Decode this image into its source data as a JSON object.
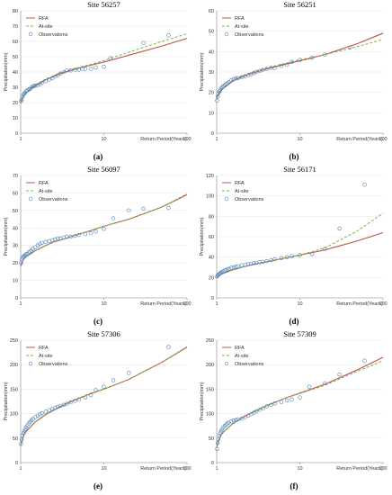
{
  "colors": {
    "rfa": "#c0504d",
    "atsite": "#7ab648",
    "obs": "#4f81bd",
    "axis": "#808080"
  },
  "chart_data": [
    {
      "type": "line",
      "title": "Site 56257",
      "panel_label": "(a)",
      "xlabel": "Return Period(Years)",
      "ylabel": "Precipitation(mm)",
      "xscale": "log",
      "xlim": [
        1,
        100
      ],
      "ylim": [
        0,
        80
      ],
      "xticks": [
        1,
        10,
        100
      ],
      "yticks": [
        0,
        10,
        20,
        30,
        40,
        50,
        60,
        70,
        80
      ],
      "legend": [
        "RFA",
        "At-site",
        "Observations"
      ],
      "legend_position": "top-left",
      "series": [
        {
          "name": "RFA",
          "kind": "line",
          "x": [
            1,
            1.05,
            1.1,
            1.2,
            1.35,
            1.5,
            1.75,
            2,
            2.5,
            3,
            4,
            5,
            7,
            10,
            20,
            50,
            100
          ],
          "y": [
            20,
            23,
            25,
            27,
            29.5,
            31,
            33,
            35,
            37,
            39,
            41,
            42.5,
            44.5,
            46.5,
            51,
            57,
            62
          ]
        },
        {
          "name": "At-site",
          "kind": "line",
          "x": [
            1,
            1.05,
            1.1,
            1.2,
            1.35,
            1.5,
            1.75,
            2,
            2.5,
            3,
            4,
            5,
            7,
            10,
            20,
            50,
            100
          ],
          "y": [
            20.5,
            23.5,
            25.5,
            27.5,
            30,
            31.5,
            33.5,
            35.5,
            37.5,
            39.5,
            41.5,
            43,
            45,
            47.5,
            53,
            60,
            65
          ]
        },
        {
          "name": "Observations",
          "kind": "points",
          "x": [
            1.01,
            1.03,
            1.05,
            1.08,
            1.1,
            1.13,
            1.16,
            1.2,
            1.25,
            1.3,
            1.35,
            1.4,
            1.45,
            1.5,
            1.6,
            1.7,
            1.8,
            2,
            2.2,
            2.4,
            2.6,
            2.8,
            3,
            3.3,
            3.6,
            4,
            4.5,
            5,
            5.5,
            6,
            7,
            8,
            10,
            12,
            30,
            60
          ],
          "y": [
            21,
            22,
            24,
            25,
            26,
            26.5,
            27.5,
            28,
            28.5,
            29,
            30,
            30.5,
            31,
            31,
            31.5,
            32,
            33,
            34,
            35,
            36,
            37,
            38,
            39,
            40,
            41,
            41,
            41.5,
            41.5,
            42,
            42,
            42,
            43,
            43.5,
            49,
            59,
            64
          ]
        }
      ]
    },
    {
      "type": "line",
      "title": "Site 56251",
      "panel_label": "(b)",
      "xlabel": "Return Period(Years)",
      "ylabel": "Precipitation(mm)",
      "xscale": "log",
      "xlim": [
        1,
        100
      ],
      "ylim": [
        0,
        60
      ],
      "xticks": [
        1,
        10,
        100
      ],
      "yticks": [
        0,
        10,
        20,
        30,
        40,
        50,
        60
      ],
      "legend": [
        "RFA",
        "At-site",
        "Observations"
      ],
      "legend_position": "top-left",
      "series": [
        {
          "name": "RFA",
          "kind": "line",
          "x": [
            1,
            1.05,
            1.1,
            1.2,
            1.35,
            1.5,
            1.75,
            2,
            2.5,
            3,
            4,
            5,
            7,
            10,
            20,
            50,
            100
          ],
          "y": [
            17,
            19,
            20.5,
            22,
            23.5,
            25,
            26.5,
            27.5,
            29,
            30,
            31.5,
            32.5,
            34,
            35.5,
            38.5,
            44,
            49
          ]
        },
        {
          "name": "At-site",
          "kind": "line",
          "x": [
            1,
            1.05,
            1.1,
            1.2,
            1.35,
            1.5,
            1.75,
            2,
            2.5,
            3,
            4,
            5,
            7,
            10,
            20,
            50,
            100
          ],
          "y": [
            17.5,
            19.5,
            21,
            22.5,
            24,
            25.5,
            27,
            28,
            29.5,
            30.5,
            32,
            33,
            34.5,
            36,
            38.5,
            42.5,
            46
          ]
        },
        {
          "name": "Observations",
          "kind": "points",
          "x": [
            1.01,
            1.03,
            1.05,
            1.08,
            1.1,
            1.13,
            1.16,
            1.2,
            1.25,
            1.3,
            1.35,
            1.4,
            1.5,
            1.6,
            1.7,
            1.8,
            2,
            2.2,
            2.4,
            2.6,
            2.8,
            3,
            3.3,
            3.6,
            4,
            4.5,
            5,
            6,
            7,
            8,
            10,
            14,
            20,
            40
          ],
          "y": [
            16,
            18,
            19.5,
            20.5,
            21,
            22,
            22.5,
            23,
            23.5,
            24,
            24.5,
            25,
            26,
            26.5,
            27,
            27,
            27.5,
            28,
            28.5,
            29,
            29.5,
            30,
            30.5,
            31,
            31.5,
            32,
            32,
            33,
            33.5,
            35,
            36,
            37,
            38.5,
            42
          ]
        }
      ]
    },
    {
      "type": "line",
      "title": "Site 56097",
      "panel_label": "(c)",
      "xlabel": "Return Period(Years)",
      "ylabel": "Precipitation(mm)",
      "xscale": "log",
      "xlim": [
        1,
        100
      ],
      "ylim": [
        0,
        70
      ],
      "xticks": [
        1,
        10,
        100
      ],
      "yticks": [
        0,
        10,
        20,
        30,
        40,
        50,
        60,
        70
      ],
      "legend": [
        "RFA",
        "At-site",
        "Observations"
      ],
      "legend_position": "top-left",
      "series": [
        {
          "name": "RFA",
          "kind": "line",
          "x": [
            1,
            1.05,
            1.1,
            1.2,
            1.35,
            1.5,
            1.75,
            2,
            2.5,
            3,
            4,
            5,
            7,
            10,
            20,
            50,
            100
          ],
          "y": [
            18,
            21,
            22.5,
            24,
            25.5,
            27,
            28.5,
            30,
            32,
            33,
            35,
            36.5,
            38.5,
            41,
            45,
            52,
            59
          ]
        },
        {
          "name": "At-site",
          "kind": "line",
          "x": [
            1,
            1.05,
            1.1,
            1.2,
            1.35,
            1.5,
            1.75,
            2,
            2.5,
            3,
            4,
            5,
            7,
            10,
            20,
            50,
            100
          ],
          "y": [
            18,
            21,
            22.5,
            24,
            25.5,
            27,
            28.5,
            30,
            32,
            33,
            35,
            36.5,
            38.5,
            41,
            45,
            52,
            59.5
          ]
        },
        {
          "name": "Observations",
          "kind": "points",
          "x": [
            1.01,
            1.03,
            1.05,
            1.08,
            1.1,
            1.13,
            1.16,
            1.2,
            1.25,
            1.3,
            1.35,
            1.4,
            1.5,
            1.6,
            1.7,
            1.8,
            2,
            2.2,
            2.4,
            2.6,
            2.8,
            3,
            3.3,
            3.6,
            4,
            4.5,
            5,
            6,
            7,
            8,
            10,
            13,
            20,
            30,
            60
          ],
          "y": [
            20,
            22,
            23,
            23.5,
            24,
            24.5,
            25,
            25,
            26,
            26.5,
            27,
            28,
            29,
            30,
            31,
            31.5,
            32,
            32.5,
            33,
            33.5,
            34,
            34,
            34.5,
            35,
            35,
            35.5,
            36,
            36.5,
            37,
            38,
            39.5,
            45.5,
            50,
            51,
            51.5
          ]
        }
      ]
    },
    {
      "type": "line",
      "title": "Site 56171",
      "panel_label": "(d)",
      "xlabel": "Return Period(Years)",
      "ylabel": "Precipitation(mm)",
      "xscale": "log",
      "xlim": [
        1,
        100
      ],
      "ylim": [
        0,
        120
      ],
      "xticks": [
        1,
        10,
        100
      ],
      "yticks": [
        0,
        20,
        40,
        60,
        80,
        100,
        120
      ],
      "legend": [
        "RFA",
        "At-site",
        "Observations"
      ],
      "legend_position": "top-left",
      "series": [
        {
          "name": "RFA",
          "kind": "line",
          "x": [
            1,
            1.05,
            1.1,
            1.2,
            1.35,
            1.5,
            1.75,
            2,
            2.5,
            3,
            4,
            5,
            7,
            10,
            20,
            50,
            100
          ],
          "y": [
            20,
            21.5,
            22.5,
            24,
            25.5,
            27,
            28.5,
            30,
            32,
            33.5,
            35.5,
            37,
            39.5,
            42,
            47,
            56,
            64
          ]
        },
        {
          "name": "At-site",
          "kind": "line",
          "x": [
            1,
            1.05,
            1.1,
            1.2,
            1.35,
            1.5,
            1.75,
            2,
            2.5,
            3,
            4,
            5,
            7,
            10,
            20,
            50,
            100
          ],
          "y": [
            20,
            21.5,
            22.5,
            24,
            25.5,
            27,
            28.5,
            30,
            32,
            33.5,
            35.5,
            37,
            39.5,
            42,
            49,
            66,
            83
          ]
        },
        {
          "name": "Observations",
          "kind": "points",
          "x": [
            1.01,
            1.03,
            1.05,
            1.08,
            1.1,
            1.13,
            1.16,
            1.2,
            1.25,
            1.3,
            1.35,
            1.4,
            1.5,
            1.6,
            1.7,
            1.8,
            2,
            2.2,
            2.4,
            2.6,
            2.8,
            3,
            3.3,
            3.6,
            4,
            4.5,
            5,
            6,
            7,
            8,
            10,
            14,
            20,
            30,
            60
          ],
          "y": [
            21,
            22,
            23,
            23.5,
            24,
            25,
            25.5,
            26,
            27,
            27.5,
            28,
            28.5,
            29.5,
            30,
            30.5,
            31,
            32,
            32.5,
            33,
            33.5,
            34,
            34.5,
            35,
            35.5,
            36,
            37,
            38,
            39,
            40,
            41,
            42,
            43,
            48,
            68,
            111
          ]
        }
      ]
    },
    {
      "type": "line",
      "title": "Site 57306",
      "panel_label": "(e)",
      "xlabel": "Return Period(Years)",
      "ylabel": "Precipitation(mm)",
      "xscale": "log",
      "xlim": [
        1,
        100
      ],
      "ylim": [
        0,
        250
      ],
      "xticks": [
        1,
        10,
        100
      ],
      "yticks": [
        0,
        50,
        100,
        150,
        200,
        250
      ],
      "legend": [
        "RFA",
        "At-site",
        "Observations"
      ],
      "legend_position": "top-left",
      "series": [
        {
          "name": "RFA",
          "kind": "line",
          "x": [
            1,
            1.05,
            1.1,
            1.2,
            1.35,
            1.5,
            1.75,
            2,
            2.5,
            3,
            4,
            5,
            7,
            10,
            20,
            50,
            100
          ],
          "y": [
            35,
            48,
            58,
            66,
            75,
            83,
            91,
            98,
            107,
            114,
            124,
            131,
            141,
            150,
            170,
            205,
            236
          ]
        },
        {
          "name": "At-site",
          "kind": "line",
          "x": [
            1,
            1.05,
            1.1,
            1.2,
            1.35,
            1.5,
            1.75,
            2,
            2.5,
            3,
            4,
            5,
            7,
            10,
            20,
            50,
            100
          ],
          "y": [
            35,
            49,
            59,
            67,
            76,
            84,
            92,
            99,
            108,
            115,
            125,
            132,
            142,
            150,
            170,
            205,
            235
          ]
        },
        {
          "name": "Observations",
          "kind": "points",
          "x": [
            1.01,
            1.03,
            1.05,
            1.08,
            1.1,
            1.13,
            1.16,
            1.2,
            1.25,
            1.3,
            1.35,
            1.4,
            1.5,
            1.6,
            1.7,
            1.8,
            2,
            2.2,
            2.4,
            2.6,
            2.8,
            3,
            3.3,
            3.6,
            4,
            4.5,
            5,
            6,
            7,
            8,
            10,
            13,
            20,
            60
          ],
          "y": [
            38,
            47,
            55,
            60,
            64,
            68,
            72,
            76,
            80,
            83,
            86,
            89,
            93,
            96,
            99,
            101,
            104,
            107,
            110,
            112,
            114,
            116,
            118,
            120,
            123,
            126,
            129,
            133,
            138,
            148,
            155,
            168,
            183,
            236
          ]
        }
      ]
    },
    {
      "type": "line",
      "title": "Site 57309",
      "panel_label": "(f)",
      "xlabel": "Return Period(Years)",
      "ylabel": "Precipitation(mm)",
      "xscale": "log",
      "xlim": [
        1,
        100
      ],
      "ylim": [
        0,
        250
      ],
      "xticks": [
        1,
        10,
        100
      ],
      "yticks": [
        0,
        50,
        100,
        150,
        200,
        250
      ],
      "legend": [
        "RFA",
        "At-site",
        "Observations"
      ],
      "legend_position": "top-left",
      "series": [
        {
          "name": "RFA",
          "kind": "line",
          "x": [
            1,
            1.05,
            1.1,
            1.2,
            1.35,
            1.5,
            1.75,
            2,
            2.5,
            3,
            4,
            5,
            7,
            10,
            20,
            50,
            100
          ],
          "y": [
            30,
            44,
            53,
            62,
            70,
            77,
            85,
            91,
            100,
            106,
            116,
            123,
            133,
            142,
            160,
            190,
            215
          ]
        },
        {
          "name": "At-site",
          "kind": "line",
          "x": [
            1,
            1.05,
            1.1,
            1.2,
            1.35,
            1.5,
            1.75,
            2,
            2.5,
            3,
            4,
            5,
            7,
            10,
            20,
            50,
            100
          ],
          "y": [
            30,
            44,
            53,
            62,
            70,
            77,
            85,
            91,
            100,
            106,
            116,
            123,
            133,
            141,
            158,
            187,
            208
          ]
        },
        {
          "name": "Observations",
          "kind": "points",
          "x": [
            1.01,
            1.03,
            1.05,
            1.08,
            1.1,
            1.13,
            1.16,
            1.2,
            1.25,
            1.3,
            1.35,
            1.4,
            1.5,
            1.6,
            1.7,
            1.8,
            2,
            2.2,
            2.4,
            2.6,
            2.8,
            3,
            3.3,
            3.6,
            4,
            4.5,
            5,
            6,
            7,
            8,
            10,
            13,
            20,
            30,
            60
          ],
          "y": [
            28,
            40,
            48,
            55,
            60,
            64,
            68,
            72,
            75,
            78,
            80,
            82,
            84,
            86,
            87,
            88,
            90,
            93,
            96,
            99,
            102,
            105,
            108,
            111,
            115,
            118,
            121,
            124,
            127,
            129,
            133,
            155,
            162,
            180,
            208
          ]
        }
      ]
    }
  ]
}
